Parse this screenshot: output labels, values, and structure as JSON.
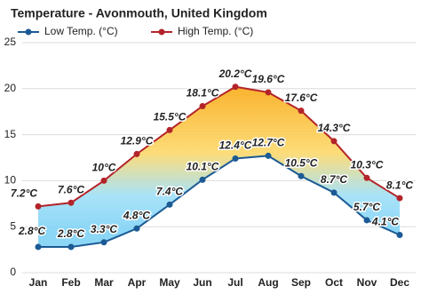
{
  "chart_data": {
    "type": "line",
    "title": "Temperature - Avonmouth, United Kingdom",
    "categories": [
      "Jan",
      "Feb",
      "Mar",
      "Apr",
      "May",
      "Jun",
      "Jul",
      "Aug",
      "Sep",
      "Oct",
      "Nov",
      "Dec"
    ],
    "series": [
      {
        "name": "Low Temp. (°C)",
        "color": "#1b5a94",
        "values": [
          2.8,
          2.8,
          3.3,
          4.8,
          7.4,
          10.1,
          12.4,
          12.7,
          10.5,
          8.7,
          5.7,
          4.1
        ],
        "value_labels": [
          "2.8°C",
          "2.8°C",
          "3.3°C",
          "4.8°C",
          "7.4°C",
          "10.1°C",
          "12.4°C",
          "12.7°C",
          "10.5°C",
          "8.7°C",
          "5.7°C",
          "4.1°C"
        ]
      },
      {
        "name": "High Temp. (°C)",
        "color": "#b3242a",
        "values": [
          7.2,
          7.6,
          10,
          12.9,
          15.5,
          18.1,
          20.2,
          19.6,
          17.6,
          14.3,
          10.3,
          8.1
        ],
        "value_labels": [
          "7.2°C",
          "7.6°C",
          "10°C",
          "12.9°C",
          "15.5°C",
          "18.1°C",
          "20.2°C",
          "19.6°C",
          "17.6°C",
          "14.3°C",
          "10.3°C",
          "8.1°C"
        ]
      }
    ],
    "ylim": [
      0,
      25
    ],
    "yticks": [
      0,
      5,
      10,
      15,
      20,
      25
    ],
    "grid": true
  }
}
